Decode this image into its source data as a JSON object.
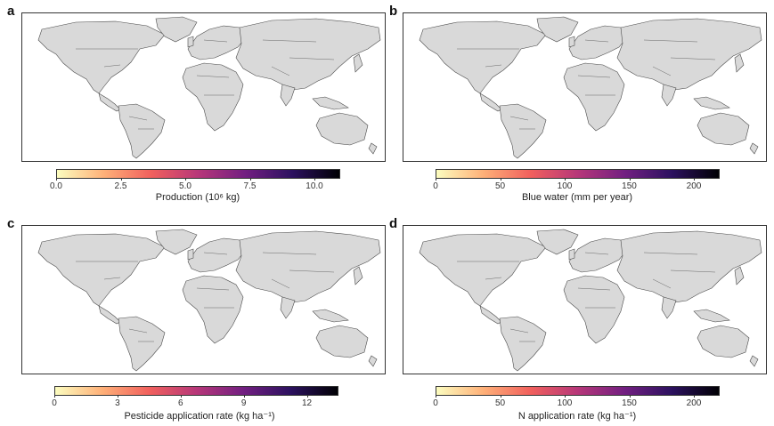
{
  "panels": [
    {
      "letter": "a",
      "colorbar": {
        "title": "Production (10⁶ kg)",
        "ticks": [
          "0.0",
          "2.5",
          "5.0",
          "7.5",
          "10.0"
        ],
        "tick_values": [
          0,
          2.5,
          5.0,
          7.5,
          10.0
        ],
        "range": [
          0,
          11
        ]
      }
    },
    {
      "letter": "b",
      "colorbar": {
        "title": "Blue water (mm per year)",
        "ticks": [
          "0",
          "50",
          "100",
          "150",
          "200"
        ],
        "tick_values": [
          0,
          50,
          100,
          150,
          200
        ],
        "range": [
          0,
          220
        ]
      }
    },
    {
      "letter": "c",
      "colorbar": {
        "title": "Pesticide application rate (kg ha⁻¹)",
        "ticks": [
          "0",
          "3",
          "6",
          "9",
          "12"
        ],
        "tick_values": [
          0,
          3,
          6,
          9,
          12
        ],
        "range": [
          0,
          13.5
        ]
      }
    },
    {
      "letter": "d",
      "colorbar": {
        "title": "N application rate (kg ha⁻¹)",
        "ticks": [
          "0",
          "50",
          "100",
          "150",
          "200"
        ],
        "tick_values": [
          0,
          50,
          100,
          150,
          200
        ],
        "range": [
          0,
          220
        ]
      }
    }
  ],
  "colors": {
    "land": "#d9d9d9",
    "border": "#4a4a4a",
    "ocean": "#ffffff",
    "colormap": [
      "#fcfdbf",
      "#feb078",
      "#f1605d",
      "#b73779",
      "#721f81",
      "#2c115f",
      "#000004"
    ]
  }
}
